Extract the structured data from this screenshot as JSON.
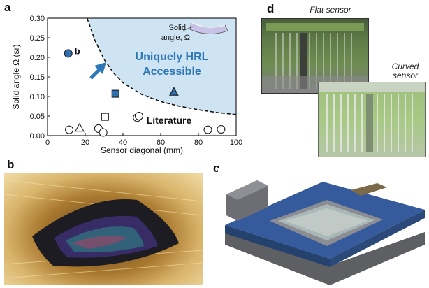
{
  "panels": {
    "a": "a",
    "b": "b",
    "c": "c",
    "d": "d"
  },
  "chart_data": {
    "type": "scatter",
    "xlabel": "Sensor diagonal (mm)",
    "ylabel": "Solid angle  Ω (sr)",
    "xlim": [
      0,
      10
    ],
    "ylim": [
      0,
      0.3
    ],
    "xticks": [
      0,
      20,
      40,
      60,
      80,
      100
    ],
    "xtick_scale": 10,
    "yticks": [
      "0.00",
      "0.05",
      "0.10",
      "0.15",
      "0.20",
      "0.25",
      "0.30"
    ],
    "region_label": "Uniquely HRL Accessible",
    "region_label_line1": "Uniquely HRL",
    "region_label_line2": "Accessible",
    "literature_label": "Literature",
    "point_b_label": "b",
    "inset_label_line1": "Solid",
    "inset_label_line2": "angle, Ω",
    "colors": {
      "region": "#cfe4f3",
      "accent": "#2f78b7",
      "hrl_marker": "#2f6fad"
    },
    "hrl_points": [
      {
        "marker": "circle",
        "x": 1.1,
        "y": 0.21
      },
      {
        "marker": "square",
        "x": 3.6,
        "y": 0.107
      },
      {
        "marker": "triangle",
        "x": 6.7,
        "y": 0.112
      }
    ],
    "literature_points": [
      {
        "marker": "circle",
        "x": 1.15,
        "y": 0.015
      },
      {
        "marker": "triangle",
        "x": 1.7,
        "y": 0.02
      },
      {
        "marker": "circle",
        "x": 2.7,
        "y": 0.018
      },
      {
        "marker": "circle",
        "x": 2.95,
        "y": 0.008
      },
      {
        "marker": "square",
        "x": 3.05,
        "y": 0.048
      },
      {
        "marker": "circle",
        "x": 4.75,
        "y": 0.046
      },
      {
        "marker": "circle",
        "x": 4.85,
        "y": 0.05
      },
      {
        "marker": "circle",
        "x": 8.5,
        "y": 0.015
      },
      {
        "marker": "circle",
        "x": 9.2,
        "y": 0.016
      }
    ],
    "boundary_curve": [
      [
        2.1,
        0.3
      ],
      [
        2.5,
        0.245
      ],
      [
        3.0,
        0.195
      ],
      [
        3.5,
        0.16
      ],
      [
        4.0,
        0.135
      ],
      [
        5.0,
        0.105
      ],
      [
        6.0,
        0.087
      ],
      [
        7.0,
        0.075
      ],
      [
        8.0,
        0.066
      ],
      [
        9.0,
        0.059
      ],
      [
        10.0,
        0.054
      ]
    ]
  },
  "sensors": {
    "flat_label": "Flat sensor",
    "curved_label_line1": "Curved",
    "curved_label_line2": "sensor"
  }
}
